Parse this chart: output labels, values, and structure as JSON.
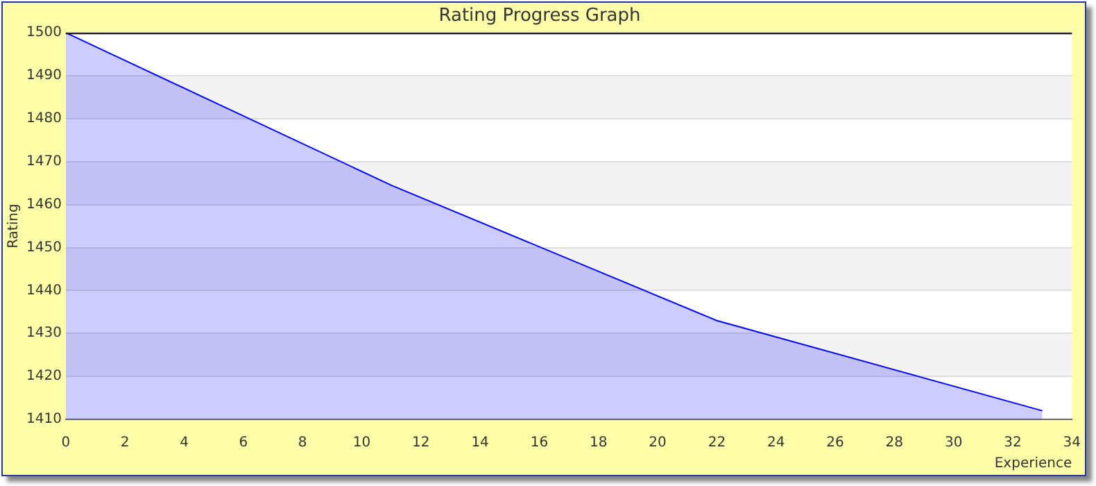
{
  "chart_data": {
    "type": "area",
    "title": "Rating Progress Graph",
    "xlabel": "Experience",
    "ylabel": "Rating",
    "x": [
      0,
      11,
      22,
      33
    ],
    "series": [
      {
        "color": "#0000ff",
        "values": [
          1500,
          1464.5,
          1433,
          1412
        ]
      }
    ],
    "xlim": [
      0,
      34
    ],
    "xticks": [
      0,
      2,
      4,
      6,
      8,
      10,
      12,
      14,
      16,
      18,
      20,
      22,
      24,
      26,
      28,
      30,
      32,
      34
    ],
    "ylim": [
      1410,
      1500
    ],
    "yticks": [
      1410,
      1420,
      1430,
      1440,
      1450,
      1460,
      1470,
      1480,
      1490,
      1500
    ],
    "grid": "y",
    "legend": false,
    "marker": "none"
  }
}
